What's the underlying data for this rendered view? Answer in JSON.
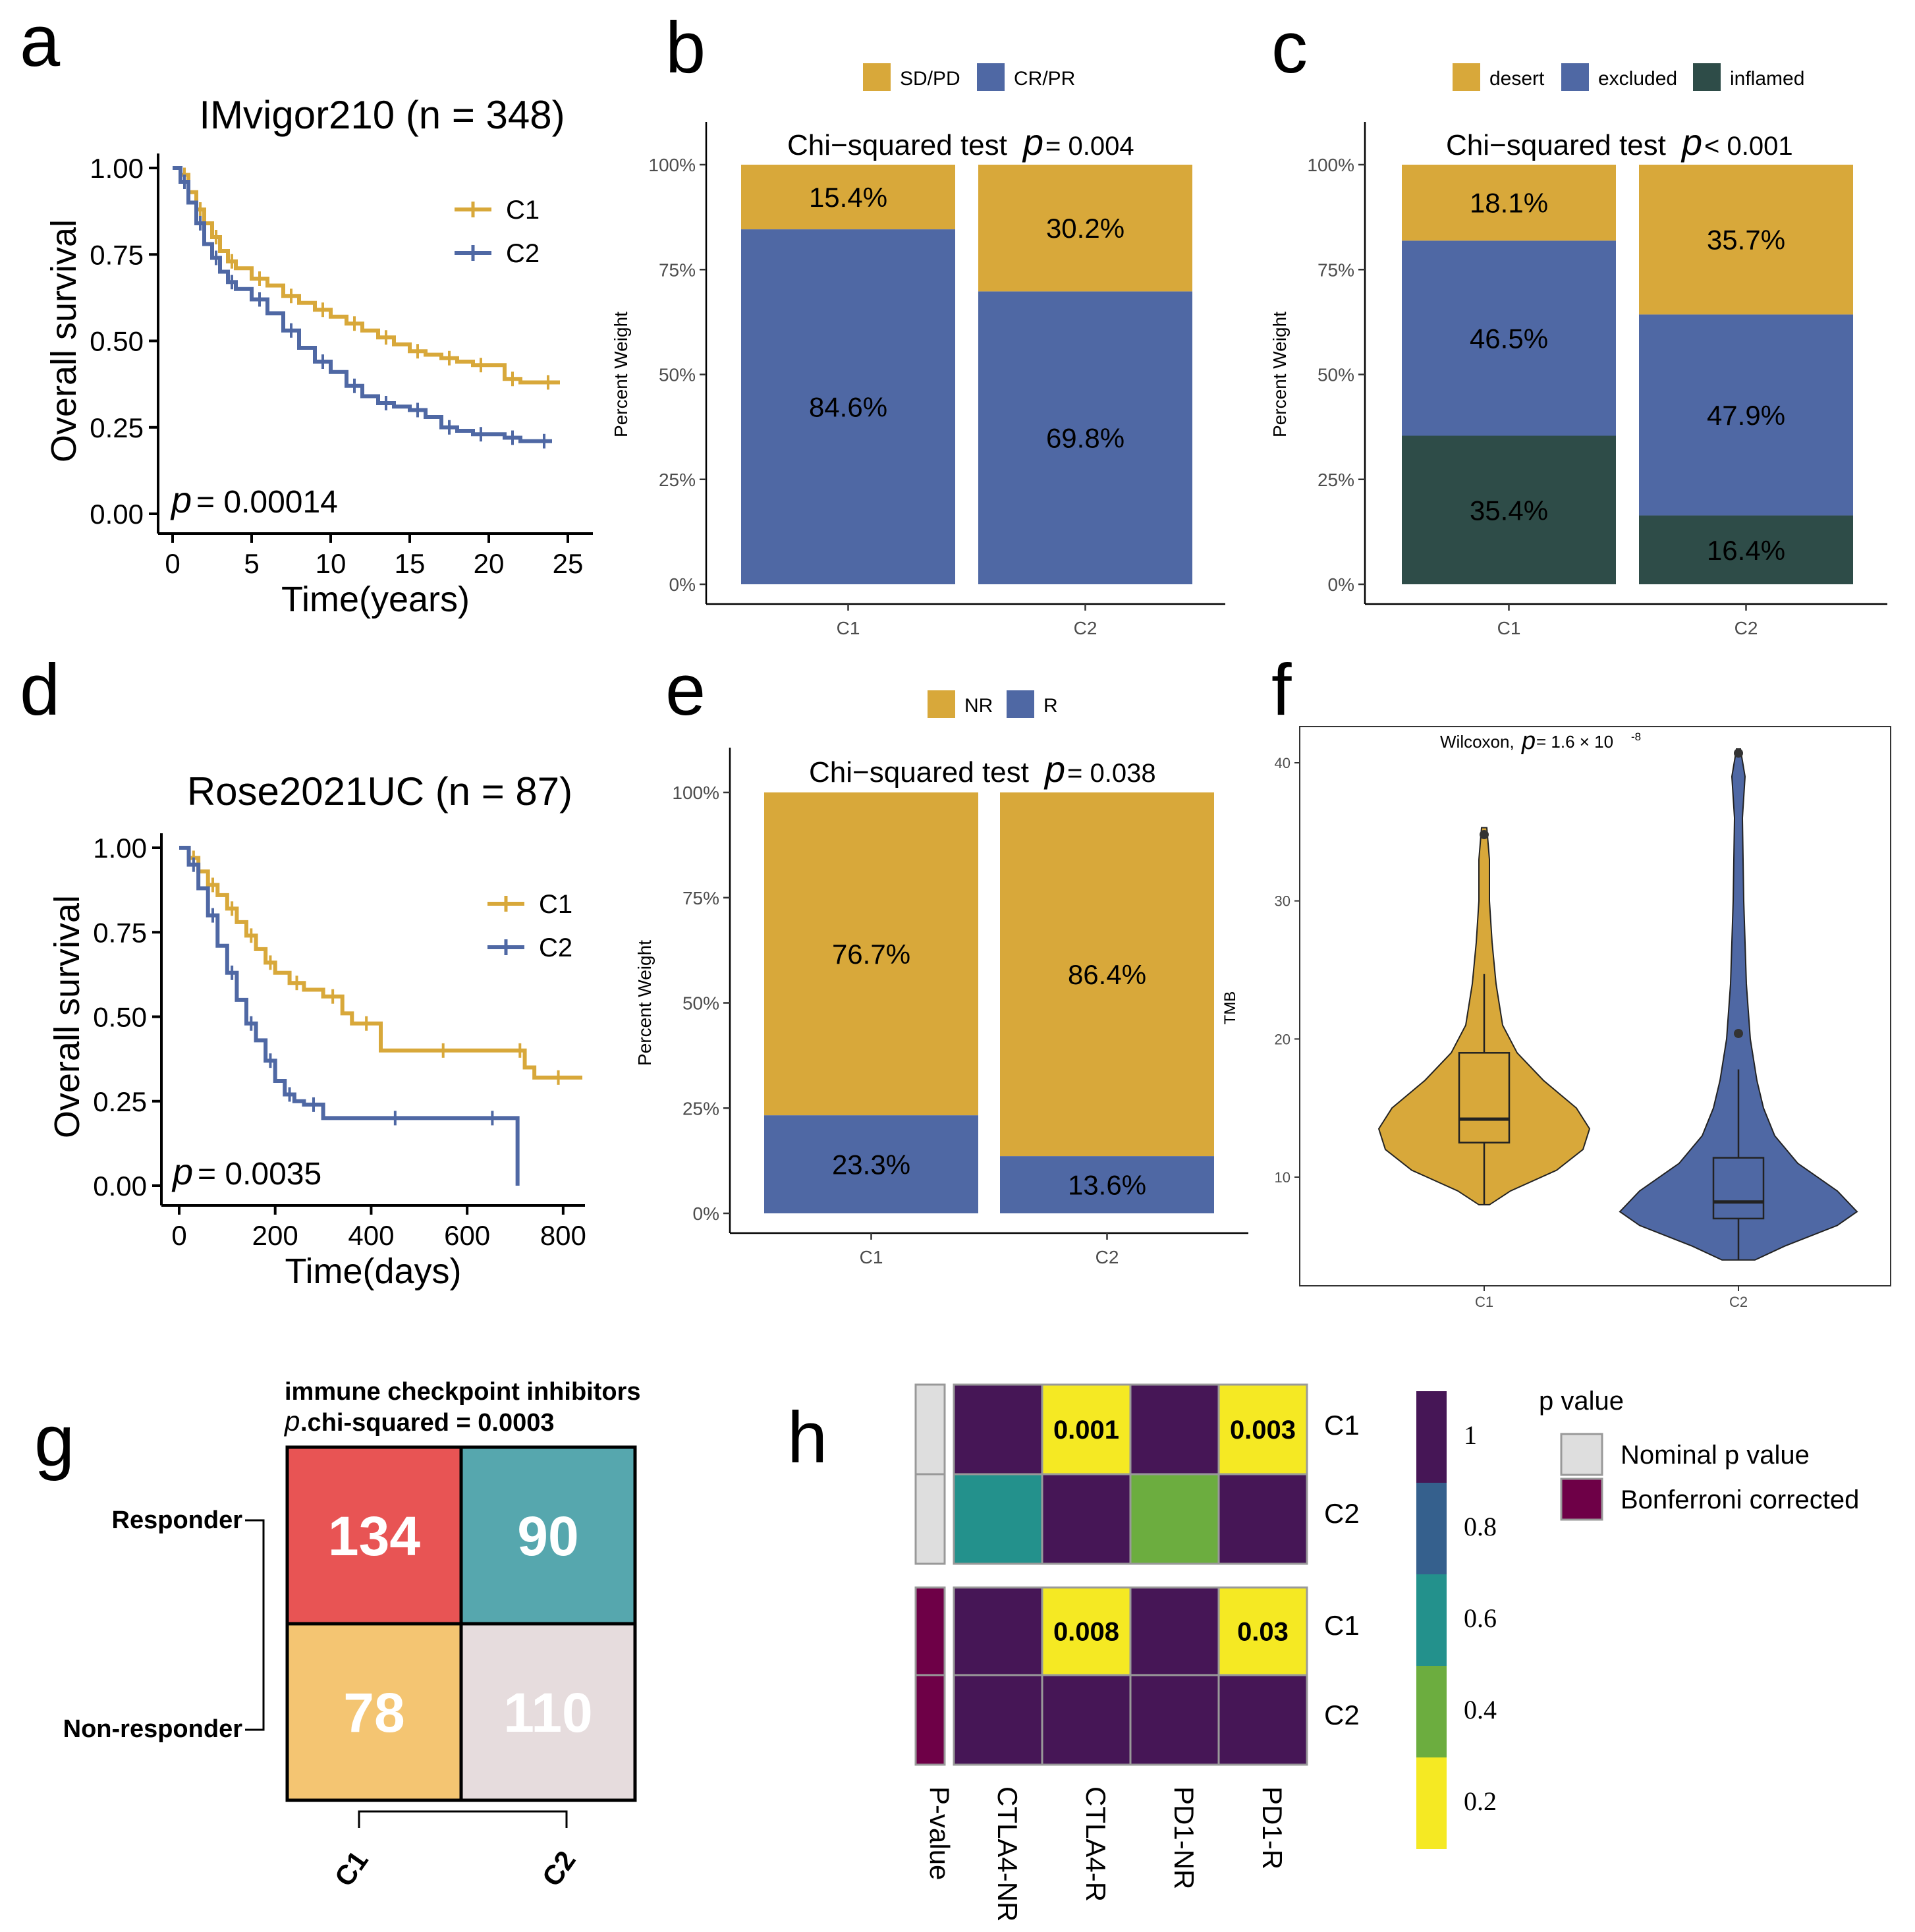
{
  "colors": {
    "gold": "#D8A83A",
    "blue": "#4F68A4",
    "darkgreen": "#2E4C48",
    "km_c1": "#D8A83A",
    "km_c2": "#4F68A4",
    "red": "#E85454",
    "teal": "#56A7AE",
    "lightorange": "#F4C572",
    "lightgray": "#E6DCDD",
    "vir_purple": "#461656",
    "vir_blue": "#35608D",
    "vir_teal": "#23918C",
    "vir_green": "#6CAD3F",
    "vir_yellow": "#F5E923",
    "nominal": "#DEDEDE",
    "bonferroni": "#6E0047"
  },
  "panel_labels": [
    "a",
    "b",
    "c",
    "d",
    "e",
    "f",
    "g",
    "h"
  ],
  "chart_data": [
    {
      "id": "a",
      "type": "line",
      "title": "IMvigor210 (n = 348)",
      "xlabel": "Time(years)",
      "ylabel": "Overall survival",
      "xlim": [
        0,
        25
      ],
      "ylim": [
        0,
        1
      ],
      "xticks": [
        "0",
        "5",
        "10",
        "15",
        "20",
        "25"
      ],
      "yticks": [
        "0.00",
        "0.25",
        "0.50",
        "0.75",
        "1.00"
      ],
      "pvalue_label": "p",
      "pvalue_text": "= 0.00014",
      "legend": [
        "C1",
        "C2"
      ],
      "series": [
        {
          "name": "C1",
          "x": [
            0,
            0.5,
            1,
            1.5,
            2,
            2.5,
            3,
            3.5,
            4,
            5,
            6,
            7,
            8,
            9,
            10,
            11,
            12,
            13,
            14,
            15,
            16,
            17,
            18,
            19,
            20,
            21,
            22,
            23,
            24.5
          ],
          "y": [
            1.0,
            0.98,
            0.93,
            0.88,
            0.84,
            0.8,
            0.76,
            0.73,
            0.71,
            0.68,
            0.66,
            0.63,
            0.61,
            0.59,
            0.57,
            0.55,
            0.53,
            0.51,
            0.49,
            0.47,
            0.46,
            0.45,
            0.44,
            0.43,
            0.43,
            0.39,
            0.38,
            0.38,
            0.38
          ]
        },
        {
          "name": "C2",
          "x": [
            0,
            0.5,
            1,
            1.5,
            2,
            2.5,
            3,
            3.5,
            4,
            5,
            6,
            7,
            8,
            9,
            10,
            11,
            12,
            13,
            14,
            15,
            16,
            17,
            18,
            19,
            20,
            21,
            22,
            23,
            24
          ],
          "y": [
            1.0,
            0.96,
            0.9,
            0.84,
            0.78,
            0.74,
            0.7,
            0.67,
            0.65,
            0.62,
            0.58,
            0.53,
            0.48,
            0.44,
            0.41,
            0.37,
            0.34,
            0.32,
            0.31,
            0.3,
            0.28,
            0.25,
            0.24,
            0.23,
            0.23,
            0.22,
            0.21,
            0.21,
            0.21
          ]
        }
      ]
    },
    {
      "id": "b",
      "type": "bar",
      "subtitle_prefix": "Chi−squared test",
      "p_symbol": "p",
      "p_text": "= 0.004",
      "ylabel": "Percent Weight",
      "yticks": [
        "0%",
        "25%",
        "50%",
        "75%",
        "100%"
      ],
      "categories": [
        "C1",
        "C2"
      ],
      "legend": [
        "SD/PD",
        "CR/PR"
      ],
      "series": [
        {
          "name": "CR/PR",
          "values": [
            84.6,
            69.8
          ],
          "labels": [
            "84.6%",
            "69.8%"
          ]
        },
        {
          "name": "SD/PD",
          "values": [
            15.4,
            30.2
          ],
          "labels": [
            "15.4%",
            "30.2%"
          ]
        }
      ]
    },
    {
      "id": "c",
      "type": "bar",
      "subtitle_prefix": "Chi−squared test",
      "p_symbol": "p",
      "p_text": "< 0.001",
      "ylabel": "Percent Weight",
      "yticks": [
        "0%",
        "25%",
        "50%",
        "75%",
        "100%"
      ],
      "categories": [
        "C1",
        "C2"
      ],
      "legend": [
        "desert",
        "excluded",
        "inflamed"
      ],
      "series": [
        {
          "name": "inflamed",
          "values": [
            35.4,
            16.4
          ],
          "labels": [
            "35.4%",
            "16.4%"
          ]
        },
        {
          "name": "excluded",
          "values": [
            46.5,
            47.9
          ],
          "labels": [
            "46.5%",
            "47.9%"
          ]
        },
        {
          "name": "desert",
          "values": [
            18.1,
            35.7
          ],
          "labels": [
            "18.1%",
            "35.7%"
          ]
        }
      ]
    },
    {
      "id": "d",
      "type": "line",
      "title": "Rose2021UC (n = 87)",
      "xlabel": "Time(days)",
      "ylabel": "Overall survival",
      "xlim": [
        0,
        840
      ],
      "ylim": [
        0,
        1
      ],
      "xticks": [
        "0",
        "200",
        "400",
        "600",
        "800"
      ],
      "yticks": [
        "0.00",
        "0.25",
        "0.50",
        "0.75",
        "1.00"
      ],
      "pvalue_label": "p",
      "pvalue_text": "= 0.0035",
      "legend": [
        "C1",
        "C2"
      ],
      "series": [
        {
          "name": "C1",
          "x": [
            0,
            20,
            40,
            60,
            80,
            100,
            120,
            140,
            160,
            180,
            200,
            230,
            260,
            300,
            340,
            360,
            420,
            500,
            600,
            700,
            720,
            740,
            840
          ],
          "y": [
            1.0,
            0.97,
            0.93,
            0.89,
            0.86,
            0.82,
            0.78,
            0.74,
            0.7,
            0.66,
            0.63,
            0.6,
            0.58,
            0.56,
            0.51,
            0.48,
            0.4,
            0.4,
            0.4,
            0.4,
            0.35,
            0.32,
            0.32
          ]
        },
        {
          "name": "C2",
          "x": [
            0,
            20,
            40,
            60,
            80,
            100,
            120,
            140,
            160,
            180,
            200,
            220,
            240,
            260,
            300,
            400,
            500,
            600,
            705,
            705
          ],
          "y": [
            1.0,
            0.95,
            0.88,
            0.8,
            0.71,
            0.63,
            0.55,
            0.48,
            0.43,
            0.37,
            0.31,
            0.27,
            0.25,
            0.24,
            0.2,
            0.2,
            0.2,
            0.2,
            0.2,
            0.0
          ]
        }
      ]
    },
    {
      "id": "e",
      "type": "bar",
      "subtitle_prefix": "Chi−squared test",
      "p_symbol": "p",
      "p_text": "= 0.038",
      "ylabel": "Percent Weight",
      "yticks": [
        "0%",
        "25%",
        "50%",
        "75%",
        "100%"
      ],
      "categories": [
        "C1",
        "C2"
      ],
      "legend": [
        "NR",
        "R"
      ],
      "series": [
        {
          "name": "R",
          "values": [
            23.3,
            13.6
          ],
          "labels": [
            "23.3%",
            "13.6%"
          ]
        },
        {
          "name": "NR",
          "values": [
            76.7,
            86.4
          ],
          "labels": [
            "76.7%",
            "86.4%"
          ]
        }
      ]
    },
    {
      "id": "f",
      "type": "violin",
      "annotation_prefix": "Wilcoxon,",
      "p_symbol": "p",
      "annotation_text": "= 1.6 × 10",
      "annotation_exp": "-8",
      "ylabel": "TMB",
      "ylim": [
        3,
        43
      ],
      "yticks": [
        "10",
        "20",
        "30",
        "40"
      ],
      "categories": [
        "C1",
        "C2"
      ],
      "groups": [
        {
          "name": "C1",
          "min": 8,
          "q1": 12.5,
          "median": 14.2,
          "q3": 19,
          "max": 24.7,
          "outliers": [
            34.8
          ],
          "vmax": 35.3
        },
        {
          "name": "C2",
          "min": 4,
          "q1": 7,
          "median": 8.2,
          "q3": 11.4,
          "max": 17.8,
          "outliers": [
            20.4,
            40.7
          ],
          "vmax": 41
        }
      ]
    },
    {
      "id": "g",
      "type": "table",
      "title": "immune checkpoint inhibitors",
      "subtitle_symbol": "p",
      "subtitle_text": ".chi-squared = 0.0003",
      "rows": [
        "Responder",
        "Non-responder"
      ],
      "columns": [
        "C1",
        "C2"
      ],
      "values": [
        [
          134,
          90
        ],
        [
          78,
          110
        ]
      ],
      "value_labels": [
        [
          "134",
          "90"
        ],
        [
          "78",
          "110"
        ]
      ]
    },
    {
      "id": "h",
      "type": "heatmap",
      "columns": [
        "P-value",
        "CTLA4-NR",
        "CTLA4-R",
        "PD1-NR",
        "PD1-R"
      ],
      "row_labels": [
        "C1",
        "C2",
        "C1",
        "C2"
      ],
      "values": [
        [
          1.0,
          0.001,
          1.0,
          0.003
        ],
        [
          0.6,
          1.0,
          0.4,
          1.0
        ],
        [
          1.0,
          0.008,
          1.0,
          0.03
        ],
        [
          1.0,
          1.0,
          1.0,
          1.0
        ]
      ],
      "cell_labels": [
        [
          "",
          "0.001",
          "",
          "0.003"
        ],
        [
          "",
          "",
          "",
          ""
        ],
        [
          "",
          "0.008",
          "",
          "0.03"
        ],
        [
          "",
          "",
          "",
          ""
        ]
      ],
      "colorbar_ticks": [
        "1",
        "0.8",
        "0.6",
        "0.4",
        "0.2"
      ],
      "legend_title": "p value",
      "legend_items": [
        "Nominal p value",
        "Bonferroni corrected"
      ]
    }
  ]
}
